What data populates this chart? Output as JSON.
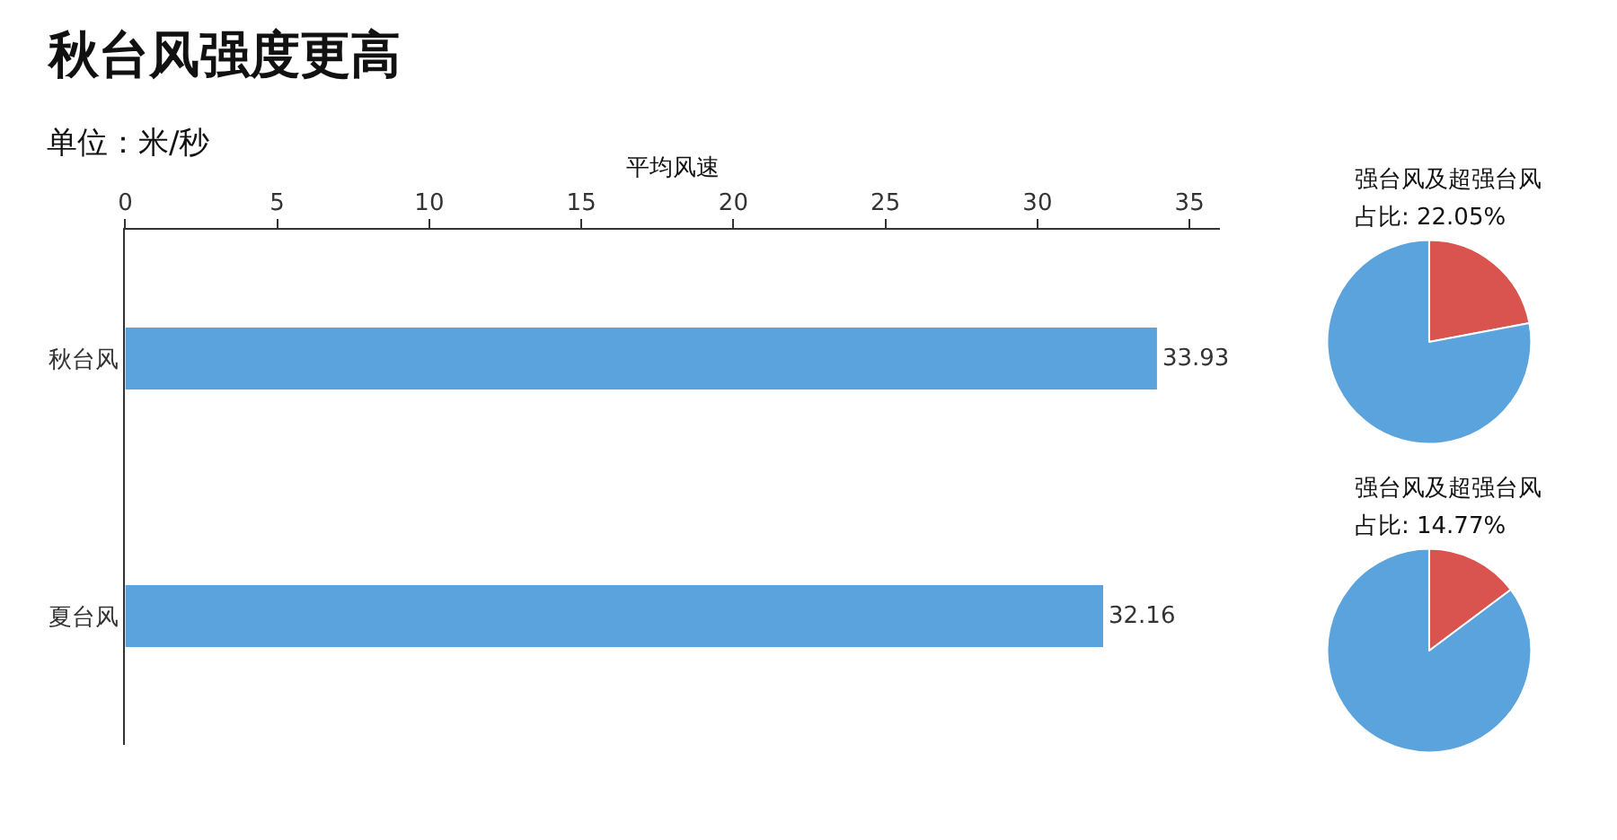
{
  "chart_data": [
    {
      "type": "bar",
      "orientation": "horizontal",
      "title": "秋台风强度更高",
      "subtitle": "单位：米/秒",
      "xlabel": "平均风速",
      "categories": [
        "秋台风",
        "夏台风"
      ],
      "values": [
        33.93,
        32.16
      ],
      "color": "#5ba3dc",
      "xlim": [
        0,
        36
      ],
      "xticks": [
        0,
        5,
        10,
        15,
        20,
        25,
        30,
        35
      ],
      "data_labels": true
    },
    {
      "type": "pie",
      "title": "强台风及超强台风",
      "subtitle": "占比: 22.05%",
      "categories": [
        null,
        null
      ],
      "values": [
        22.05,
        77.95
      ],
      "colors": [
        "#d9534f",
        "#5ba3dc"
      ]
    },
    {
      "type": "pie",
      "title": "强台风及超强台风",
      "subtitle": "占比: 14.77%",
      "categories": [
        null,
        null
      ],
      "values": [
        14.77,
        85.23
      ],
      "colors": [
        "#d9534f",
        "#5ba3dc"
      ]
    }
  ]
}
